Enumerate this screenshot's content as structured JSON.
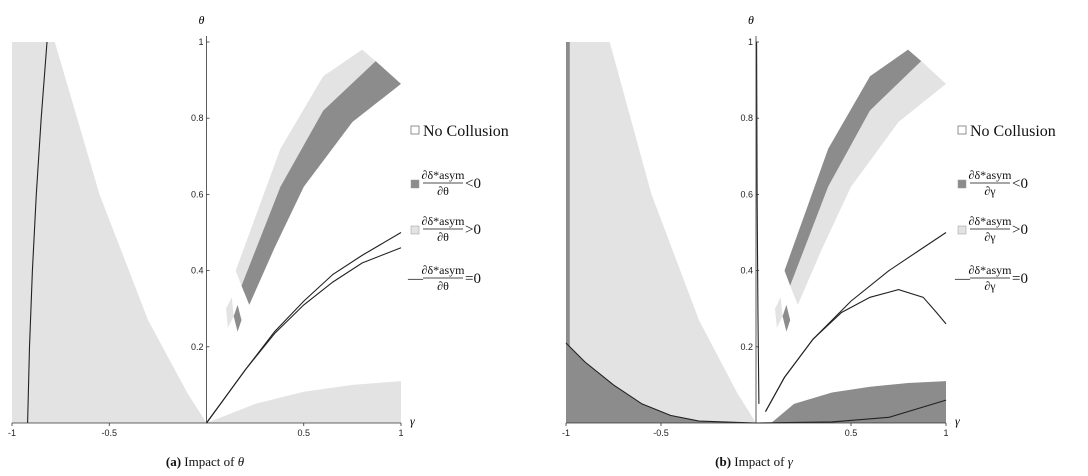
{
  "colors": {
    "light": "#e3e3e3",
    "dark": "#8c8c8c",
    "curve": "#222222"
  },
  "chart_data": [
    {
      "type": "area",
      "id": "a",
      "caption_label": "(a)",
      "caption_text": " Impact of ",
      "caption_symbol": "θ",
      "xlabel": "γ",
      "ylabel": "θ",
      "xlim": [
        -1,
        1
      ],
      "ylim": [
        0,
        1
      ],
      "x_ticks": [
        {
          "v": -1,
          "label": "-1"
        },
        {
          "v": -0.5,
          "label": "-0.5"
        },
        {
          "v": 0.5,
          "label": "0.5"
        },
        {
          "v": 1,
          "label": "1"
        }
      ],
      "y_ticks": [
        {
          "v": 0.2,
          "label": "0.2"
        },
        {
          "v": 0.4,
          "label": "0.4"
        },
        {
          "v": 0.6,
          "label": "0.6"
        },
        {
          "v": 0.8,
          "label": "0.8"
        },
        {
          "v": 1,
          "label": "1"
        }
      ],
      "regions": [
        {
          "name": "left-light-region",
          "shade": "light",
          "points": [
            [
              -1,
              1
            ],
            [
              -0.78,
              1
            ],
            [
              -0.55,
              0.6
            ],
            [
              -0.3,
              0.27
            ],
            [
              -0.1,
              0.08
            ],
            [
              0,
              0
            ],
            [
              -1,
              0
            ]
          ]
        },
        {
          "name": "bottom-light-region",
          "shade": "light",
          "points": [
            [
              0,
              0
            ],
            [
              0.25,
              0.05
            ],
            [
              0.5,
              0.082
            ],
            [
              0.75,
              0.1
            ],
            [
              1,
              0.11
            ],
            [
              1,
              0
            ],
            [
              0,
              0
            ]
          ]
        },
        {
          "name": "upper-light-band",
          "shade": "light",
          "points": [
            [
              0.15,
              0.4
            ],
            [
              0.38,
              0.72
            ],
            [
              0.6,
              0.91
            ],
            [
              0.8,
              0.98
            ],
            [
              0.87,
              0.95
            ],
            [
              0.6,
              0.82
            ],
            [
              0.38,
              0.62
            ],
            [
              0.18,
              0.36
            ]
          ]
        },
        {
          "name": "upper-dark-band",
          "shade": "dark",
          "points": [
            [
              0.18,
              0.36
            ],
            [
              0.38,
              0.62
            ],
            [
              0.6,
              0.82
            ],
            [
              0.87,
              0.95
            ],
            [
              1,
              0.89
            ],
            [
              0.75,
              0.79
            ],
            [
              0.5,
              0.62
            ],
            [
              0.35,
              0.46
            ],
            [
              0.22,
              0.31
            ]
          ]
        },
        {
          "name": "small-light-fragment",
          "shade": "light",
          "points": [
            [
              0.1,
              0.3
            ],
            [
              0.13,
              0.33
            ],
            [
              0.14,
              0.28
            ],
            [
              0.11,
              0.25
            ]
          ]
        },
        {
          "name": "small-dark-fragment",
          "shade": "dark",
          "points": [
            [
              0.14,
              0.28
            ],
            [
              0.16,
              0.31
            ],
            [
              0.18,
              0.27
            ],
            [
              0.16,
              0.24
            ]
          ]
        }
      ],
      "curves": [
        {
          "name": "left-zero-curve",
          "points": [
            [
              -0.92,
              0
            ],
            [
              -0.91,
              0.2
            ],
            [
              -0.895,
              0.4
            ],
            [
              -0.875,
              0.6
            ],
            [
              -0.85,
              0.8
            ],
            [
              -0.82,
              1
            ]
          ]
        },
        {
          "name": "right-zero-curve-upper",
          "points": [
            [
              0,
              0
            ],
            [
              0.1,
              0.07
            ],
            [
              0.2,
              0.14
            ],
            [
              0.35,
              0.24
            ],
            [
              0.5,
              0.32
            ],
            [
              0.65,
              0.39
            ],
            [
              0.8,
              0.44
            ],
            [
              1,
              0.5
            ]
          ]
        },
        {
          "name": "right-zero-curve-lower",
          "points": [
            [
              0,
              0
            ],
            [
              0.1,
              0.07
            ],
            [
              0.2,
              0.14
            ],
            [
              0.35,
              0.235
            ],
            [
              0.5,
              0.31
            ],
            [
              0.65,
              0.37
            ],
            [
              0.8,
              0.42
            ],
            [
              1,
              0.46
            ]
          ]
        }
      ],
      "legend": {
        "no_collusion": "No Collusion",
        "numerator": "∂δ*asym",
        "denominator": "∂θ",
        "neg_rel": "<0",
        "pos_rel": ">0",
        "zero_rel": "=0",
        "line_marker": "—"
      }
    },
    {
      "type": "area",
      "id": "b",
      "caption_label": "(b)",
      "caption_text": " Impact of ",
      "caption_symbol": "γ",
      "xlabel": "γ",
      "ylabel": "θ",
      "xlim": [
        -1,
        1
      ],
      "ylim": [
        0,
        1
      ],
      "x_ticks": [
        {
          "v": -1,
          "label": "-1"
        },
        {
          "v": -0.5,
          "label": "-0.5"
        },
        {
          "v": 0.5,
          "label": "0.5"
        },
        {
          "v": 1,
          "label": "1"
        }
      ],
      "y_ticks": [
        {
          "v": 0.2,
          "label": "0.2"
        },
        {
          "v": 0.4,
          "label": "0.4"
        },
        {
          "v": 0.6,
          "label": "0.6"
        },
        {
          "v": 0.8,
          "label": "0.8"
        },
        {
          "v": 1,
          "label": "1"
        }
      ],
      "regions": [
        {
          "name": "left-light-region",
          "shade": "light",
          "points": [
            [
              -1,
              1
            ],
            [
              -0.77,
              1
            ],
            [
              -0.55,
              0.6
            ],
            [
              -0.3,
              0.27
            ],
            [
              -0.1,
              0.08
            ],
            [
              0,
              0
            ],
            [
              -1,
              0
            ]
          ]
        },
        {
          "name": "left-dark-strip",
          "shade": "dark",
          "points": [
            [
              -1,
              1
            ],
            [
              -0.98,
              1
            ],
            [
              -0.98,
              0.19
            ],
            [
              -1,
              0.2
            ]
          ]
        },
        {
          "name": "bottom-left-dark-region",
          "shade": "dark",
          "points": [
            [
              -1,
              0
            ],
            [
              -1,
              0.21
            ],
            [
              -0.9,
              0.16
            ],
            [
              -0.75,
              0.1
            ],
            [
              -0.6,
              0.05
            ],
            [
              -0.45,
              0.02
            ],
            [
              -0.3,
              0.005
            ],
            [
              0,
              0
            ]
          ]
        },
        {
          "name": "bottom-right-dark-region",
          "shade": "dark",
          "points": [
            [
              0.08,
              0
            ],
            [
              0.2,
              0.05
            ],
            [
              0.4,
              0.08
            ],
            [
              0.6,
              0.095
            ],
            [
              0.8,
              0.105
            ],
            [
              1,
              0.11
            ],
            [
              1,
              0
            ],
            [
              0.08,
              0
            ]
          ]
        },
        {
          "name": "upper-dark-band",
          "shade": "dark",
          "points": [
            [
              0.15,
              0.4
            ],
            [
              0.38,
              0.72
            ],
            [
              0.6,
              0.91
            ],
            [
              0.8,
              0.98
            ],
            [
              0.87,
              0.95
            ],
            [
              0.6,
              0.82
            ],
            [
              0.38,
              0.62
            ],
            [
              0.18,
              0.36
            ]
          ]
        },
        {
          "name": "upper-light-band",
          "shade": "light",
          "points": [
            [
              0.18,
              0.36
            ],
            [
              0.38,
              0.62
            ],
            [
              0.6,
              0.82
            ],
            [
              0.87,
              0.95
            ],
            [
              1,
              0.89
            ],
            [
              0.75,
              0.79
            ],
            [
              0.5,
              0.62
            ],
            [
              0.35,
              0.46
            ],
            [
              0.22,
              0.31
            ]
          ]
        },
        {
          "name": "small-light-fragment",
          "shade": "light",
          "points": [
            [
              0.1,
              0.3
            ],
            [
              0.13,
              0.33
            ],
            [
              0.14,
              0.28
            ],
            [
              0.11,
              0.25
            ]
          ]
        },
        {
          "name": "small-dark-fragment",
          "shade": "dark",
          "points": [
            [
              0.14,
              0.28
            ],
            [
              0.16,
              0.31
            ],
            [
              0.18,
              0.27
            ],
            [
              0.16,
              0.24
            ]
          ]
        }
      ],
      "curves": [
        {
          "name": "left-vertical-curve",
          "points": [
            [
              0.015,
              0.05
            ],
            [
              0.01,
              0.3
            ],
            [
              0.006,
              0.6
            ],
            [
              0.003,
              1
            ]
          ]
        },
        {
          "name": "bottom-left-zero-curve",
          "points": [
            [
              -1,
              0.21
            ],
            [
              -0.9,
              0.16
            ],
            [
              -0.75,
              0.1
            ],
            [
              -0.6,
              0.05
            ],
            [
              -0.45,
              0.02
            ],
            [
              -0.3,
              0.005
            ],
            [
              0,
              0
            ],
            [
              0.4,
              0.003
            ],
            [
              0.7,
              0.015
            ],
            [
              1,
              0.06
            ]
          ]
        },
        {
          "name": "right-zero-curve-upper",
          "points": [
            [
              0.05,
              0.03
            ],
            [
              0.15,
              0.12
            ],
            [
              0.3,
              0.22
            ],
            [
              0.5,
              0.32
            ],
            [
              0.7,
              0.4
            ],
            [
              0.85,
              0.45
            ],
            [
              1,
              0.5
            ]
          ]
        },
        {
          "name": "right-zero-curve-hump",
          "points": [
            [
              0.05,
              0.03
            ],
            [
              0.15,
              0.12
            ],
            [
              0.3,
              0.22
            ],
            [
              0.45,
              0.29
            ],
            [
              0.6,
              0.33
            ],
            [
              0.75,
              0.35
            ],
            [
              0.88,
              0.33
            ],
            [
              0.95,
              0.29
            ],
            [
              1,
              0.26
            ]
          ]
        }
      ],
      "legend": {
        "no_collusion": "No Collusion",
        "numerator": "∂δ*asym",
        "denominator": "∂γ",
        "neg_rel": "<0",
        "pos_rel": ">0",
        "zero_rel": "=0",
        "line_marker": "—"
      }
    }
  ]
}
